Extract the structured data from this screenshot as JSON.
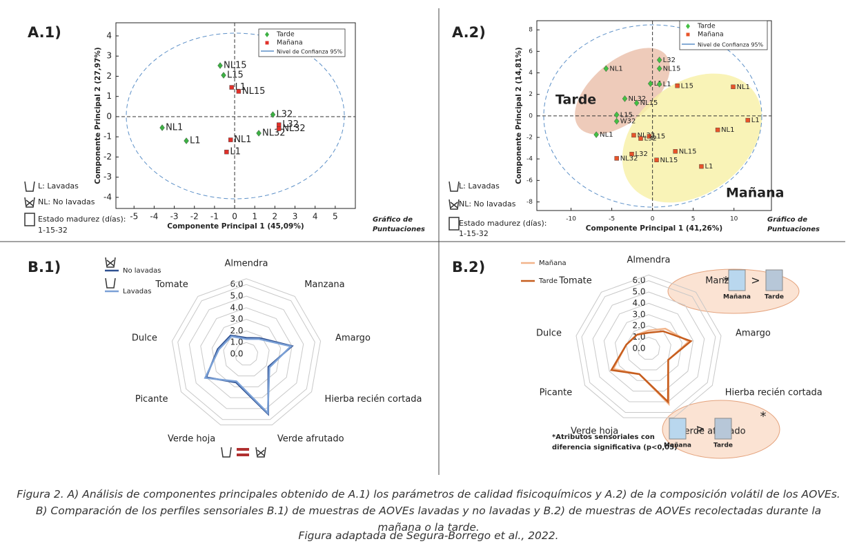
{
  "chart_data": [
    {
      "type": "scatter",
      "label": "A.1)",
      "xlabel": "Componente Principal 1 (45,09%)",
      "ylabel": "Componente Principal 2 (27,97%)",
      "xlim": [
        -5.9,
        6
      ],
      "ylim": [
        -4.55,
        4.65
      ],
      "xticks": [
        -5,
        -4,
        -3,
        -2,
        -1,
        0,
        1,
        2,
        3,
        4,
        5
      ],
      "yticks": [
        -4,
        -3,
        -2,
        -1,
        0,
        1,
        2,
        3,
        4
      ],
      "ellipse_label": "Nivel de Confianza 95%",
      "notes": [
        "L: Lavadas",
        "NL: No lavadas",
        "Estado madurez (días):",
        "1-15-32"
      ],
      "plot_note": [
        "Gráfico de",
        "Puntuaciones"
      ],
      "series": [
        {
          "name": "Tarde",
          "color": "#3cb043",
          "marker": "diamond",
          "labels": [
            "NL15",
            "L15",
            "L32",
            "NL32",
            "NL1",
            "L1"
          ],
          "x": [
            -0.72,
            -0.55,
            1.9,
            1.2,
            -3.6,
            -2.4
          ],
          "values": [
            2.53,
            2.05,
            0.1,
            -0.82,
            -0.55,
            -1.2
          ]
        },
        {
          "name": "Mañana",
          "color": "#e0302a",
          "marker": "square",
          "labels": [
            "L1",
            "NL15",
            "L32",
            "NL32",
            "NL1",
            "L1"
          ],
          "x": [
            -0.15,
            0.2,
            2.2,
            2.2,
            -0.2,
            -0.4
          ],
          "values": [
            1.45,
            1.25,
            -0.4,
            -0.6,
            -1.15,
            -1.75
          ]
        }
      ]
    },
    {
      "type": "scatter",
      "label": "A.2)",
      "xlabel": "Componente Principal 1 (41,26%)",
      "ylabel": "Componente Principal 2 (14,81%)",
      "xlim": [
        -14.2,
        14.6
      ],
      "ylim": [
        -8.8,
        8.85
      ],
      "xticks": [
        -10,
        -5,
        0,
        5,
        10
      ],
      "yticks": [
        -8,
        -6,
        -4,
        -2,
        0,
        2,
        4,
        6,
        8
      ],
      "ellipse_label": "Nivel de Confianza 95%",
      "group_labels": [
        "Tarde",
        "Mañana"
      ],
      "notes": [
        "L: Lavadas",
        "NL: No lavadas",
        "Estado madurez (días):",
        "1-15-32"
      ],
      "plot_note": [
        "Gráfico de",
        "Puntuaciones"
      ],
      "series": [
        {
          "name": "Tarde",
          "color": "#44c044",
          "marker": "diamond",
          "labels": [
            "NL1",
            "L32",
            "NL15",
            "L1",
            "L1",
            "NL32",
            "NL15",
            "L15",
            "W32",
            "NL1"
          ],
          "x": [
            -5.7,
            0.85,
            0.85,
            -0.25,
            0.85,
            -3.4,
            -1.95,
            -4.4,
            -4.4,
            -6.9
          ],
          "values": [
            4.4,
            5.2,
            4.4,
            3.0,
            2.95,
            1.6,
            1.2,
            0.1,
            -0.5,
            -1.75
          ]
        },
        {
          "name": "Mañana",
          "color": "#e8542a",
          "marker": "square",
          "labels": [
            "L15",
            "NL1",
            "L1",
            "NL1",
            "NL32",
            "L15",
            "L32",
            "NL15",
            "L32",
            "NL32",
            "NL15",
            "L1"
          ],
          "x": [
            3.05,
            9.9,
            11.7,
            8.0,
            -2.3,
            -0.4,
            -1.45,
            2.8,
            -2.55,
            -4.4,
            0.5,
            6.0
          ],
          "values": [
            2.8,
            2.7,
            -0.4,
            -1.3,
            -1.8,
            -1.9,
            -2.1,
            -3.3,
            -3.55,
            -3.95,
            -4.1,
            -4.7
          ]
        }
      ]
    },
    {
      "type": "radar",
      "label": "B.1)",
      "categories": [
        "Almendra",
        "Manzana",
        "Amargo",
        "Hierba recién cortada",
        "Verde afrutado",
        "Verde hoja",
        "Picante",
        "Dulce",
        "Tomate"
      ],
      "rlim": [
        0,
        6.5
      ],
      "rticks": [
        {
          "value": 0,
          "label": "0.0"
        },
        {
          "value": 1,
          "label": "1.0"
        },
        {
          "value": 2,
          "label": "2.0"
        },
        {
          "value": 3,
          "label": "3.0"
        },
        {
          "value": 4,
          "label": "4.0"
        },
        {
          "value": 5,
          "label": "5.0"
        },
        {
          "value": 6,
          "label": "6.0"
        }
      ],
      "series": [
        {
          "name": "No lavadas",
          "color": "#2e4f8f",
          "values": [
            1.4,
            1.8,
            4.0,
            2.2,
            5.5,
            2.6,
            4.0,
            2.5,
            2.1
          ]
        },
        {
          "name": "Lavadas",
          "color": "#7aa0d6",
          "values": [
            1.3,
            1.7,
            3.9,
            2.3,
            5.4,
            2.5,
            4.1,
            2.4,
            2.0
          ]
        }
      ]
    },
    {
      "type": "radar",
      "label": "B.2)",
      "categories": [
        "Almendra",
        "Manzana",
        "Amargo",
        "Hierba recién cortada",
        "Verde afrutado",
        "Verde hoja",
        "Picante",
        "Dulce",
        "Tomate"
      ],
      "rlim": [
        0,
        6.5
      ],
      "rticks": [
        {
          "value": 0,
          "label": "0.0"
        },
        {
          "value": 1,
          "label": "1.0"
        },
        {
          "value": 2,
          "label": "2.0"
        },
        {
          "value": 3,
          "label": "3.0"
        },
        {
          "value": 4,
          "label": "4.0"
        },
        {
          "value": 5,
          "label": "5.0"
        },
        {
          "value": 6,
          "label": "6.0"
        }
      ],
      "annotations": [
        "*Atributos sensoriales con",
        "diferencia significativa (p<0,05)"
      ],
      "comparison": [
        "Mañana",
        ">",
        "Tarde",
        "*"
      ],
      "series": [
        {
          "name": "Mañana",
          "color": "#f2b48a",
          "values": [
            1.6,
            2.3,
            3.6,
            2.0,
            5.2,
            2.4,
            3.6,
            2.0,
            1.6
          ]
        },
        {
          "name": "Tarde",
          "color": "#c65d1e",
          "values": [
            1.4,
            2.0,
            3.8,
            2.0,
            5.0,
            2.4,
            3.8,
            2.0,
            1.6
          ]
        }
      ]
    }
  ],
  "caption": "Figura 2. A) Análisis de componentes principales obtenido de A.1) los parámetros de calidad fisicoquímicos y A.2) de la composición volátil de los AOVEs. B) Comparación de los perfiles sensoriales B.1) de muestras de AOVEs lavadas y no lavadas y B.2) de muestras de AOVEs recolectadas durante la mañana o la tarde.",
  "source": "Figura adaptada de Segura-Borrego et al., 2022."
}
